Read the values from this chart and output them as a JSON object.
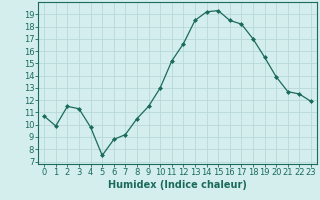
{
  "x": [
    0,
    1,
    2,
    3,
    4,
    5,
    6,
    7,
    8,
    9,
    10,
    11,
    12,
    13,
    14,
    15,
    16,
    17,
    18,
    19,
    20,
    21,
    22,
    23
  ],
  "y": [
    10.7,
    9.9,
    11.5,
    11.3,
    9.8,
    7.5,
    8.8,
    9.2,
    10.5,
    11.5,
    13.0,
    15.2,
    16.6,
    18.5,
    19.2,
    19.3,
    18.5,
    18.2,
    17.0,
    15.5,
    13.9,
    12.7,
    12.5,
    11.9
  ],
  "line_color": "#1a6b5a",
  "marker": "D",
  "marker_size": 2,
  "bg_color": "#d4eeee",
  "grid_color": "#b8d8d8",
  "xlabel": "Humidex (Indice chaleur)",
  "ylabel_ticks": [
    7,
    8,
    9,
    10,
    11,
    12,
    13,
    14,
    15,
    16,
    17,
    18,
    19
  ],
  "ylim": [
    6.8,
    20.0
  ],
  "xlim": [
    -0.5,
    23.5
  ],
  "xticks": [
    0,
    1,
    2,
    3,
    4,
    5,
    6,
    7,
    8,
    9,
    10,
    11,
    12,
    13,
    14,
    15,
    16,
    17,
    18,
    19,
    20,
    21,
    22,
    23
  ],
  "axis_color": "#1a6b5a",
  "tick_label_color": "#1a6b5a",
  "xlabel_color": "#1a6b5a",
  "xlabel_fontsize": 7,
  "tick_fontsize": 6
}
